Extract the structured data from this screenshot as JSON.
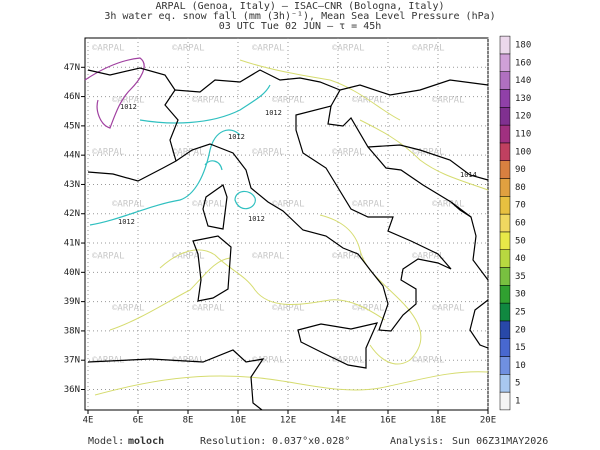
{
  "header": {
    "lines": [
      "ARPAL (Genoa, Italy)  –  ISAC–CNR (Bologna, Italy)",
      "3h water eq. snow fall (mm (3h)⁻¹), Mean Sea Level Pressure (hPa)",
      "03 UTC Tue 02 JUN  –  τ = 45h"
    ]
  },
  "map": {
    "xlim": [
      3.88,
      20
    ],
    "ylim": [
      35.3,
      48.0
    ],
    "lon_ticks": [
      {
        "value": 4,
        "label": "4E"
      },
      {
        "value": 6,
        "label": "6E"
      },
      {
        "value": 8,
        "label": "8E"
      },
      {
        "value": 10,
        "label": "10E"
      },
      {
        "value": 12,
        "label": "12E"
      },
      {
        "value": 14,
        "label": "14E"
      },
      {
        "value": 16,
        "label": "16E"
      },
      {
        "value": 18,
        "label": "18E"
      },
      {
        "value": 20,
        "label": "20E"
      }
    ],
    "lat_ticks": [
      {
        "value": 36,
        "label": "36N"
      },
      {
        "value": 37,
        "label": "37N"
      },
      {
        "value": 38,
        "label": "38N"
      },
      {
        "value": 39,
        "label": "39N"
      },
      {
        "value": 40,
        "label": "40N"
      },
      {
        "value": 41,
        "label": "41N"
      },
      {
        "value": 42,
        "label": "42N"
      },
      {
        "value": 43,
        "label": "43N"
      },
      {
        "value": 44,
        "label": "44N"
      },
      {
        "value": 45,
        "label": "45N"
      },
      {
        "value": 46,
        "label": "46N"
      },
      {
        "value": 47,
        "label": "47N"
      }
    ],
    "watermark": "©ARPAL",
    "contour_labels": [
      "1012",
      "1012",
      "1012",
      "1012",
      "1012",
      "1014"
    ]
  },
  "colorbar": {
    "levels": [
      1,
      5,
      10,
      15,
      20,
      25,
      30,
      35,
      40,
      50,
      60,
      70,
      80,
      90,
      100,
      110,
      120,
      130,
      140,
      160,
      180
    ],
    "colors": [
      "#f4f4f4",
      "#a8c8f0",
      "#7090e0",
      "#4868d0",
      "#2848a8",
      "#108840",
      "#30a030",
      "#78c040",
      "#b8d840",
      "#e8e848",
      "#f0d860",
      "#e8c040",
      "#e0a040",
      "#d88040",
      "#c04060",
      "#a03080",
      "#803090",
      "#9040a8",
      "#b070c0",
      "#d0a0d8",
      "#ecd8ec"
    ]
  },
  "footer": {
    "model_label": "Model:",
    "model": "moloch",
    "resolution_label": "Resolution:",
    "resolution": "0.037°x0.028°",
    "analysis_label": "Analysis:",
    "analysis": "Sun 06Z31MAY2026"
  }
}
